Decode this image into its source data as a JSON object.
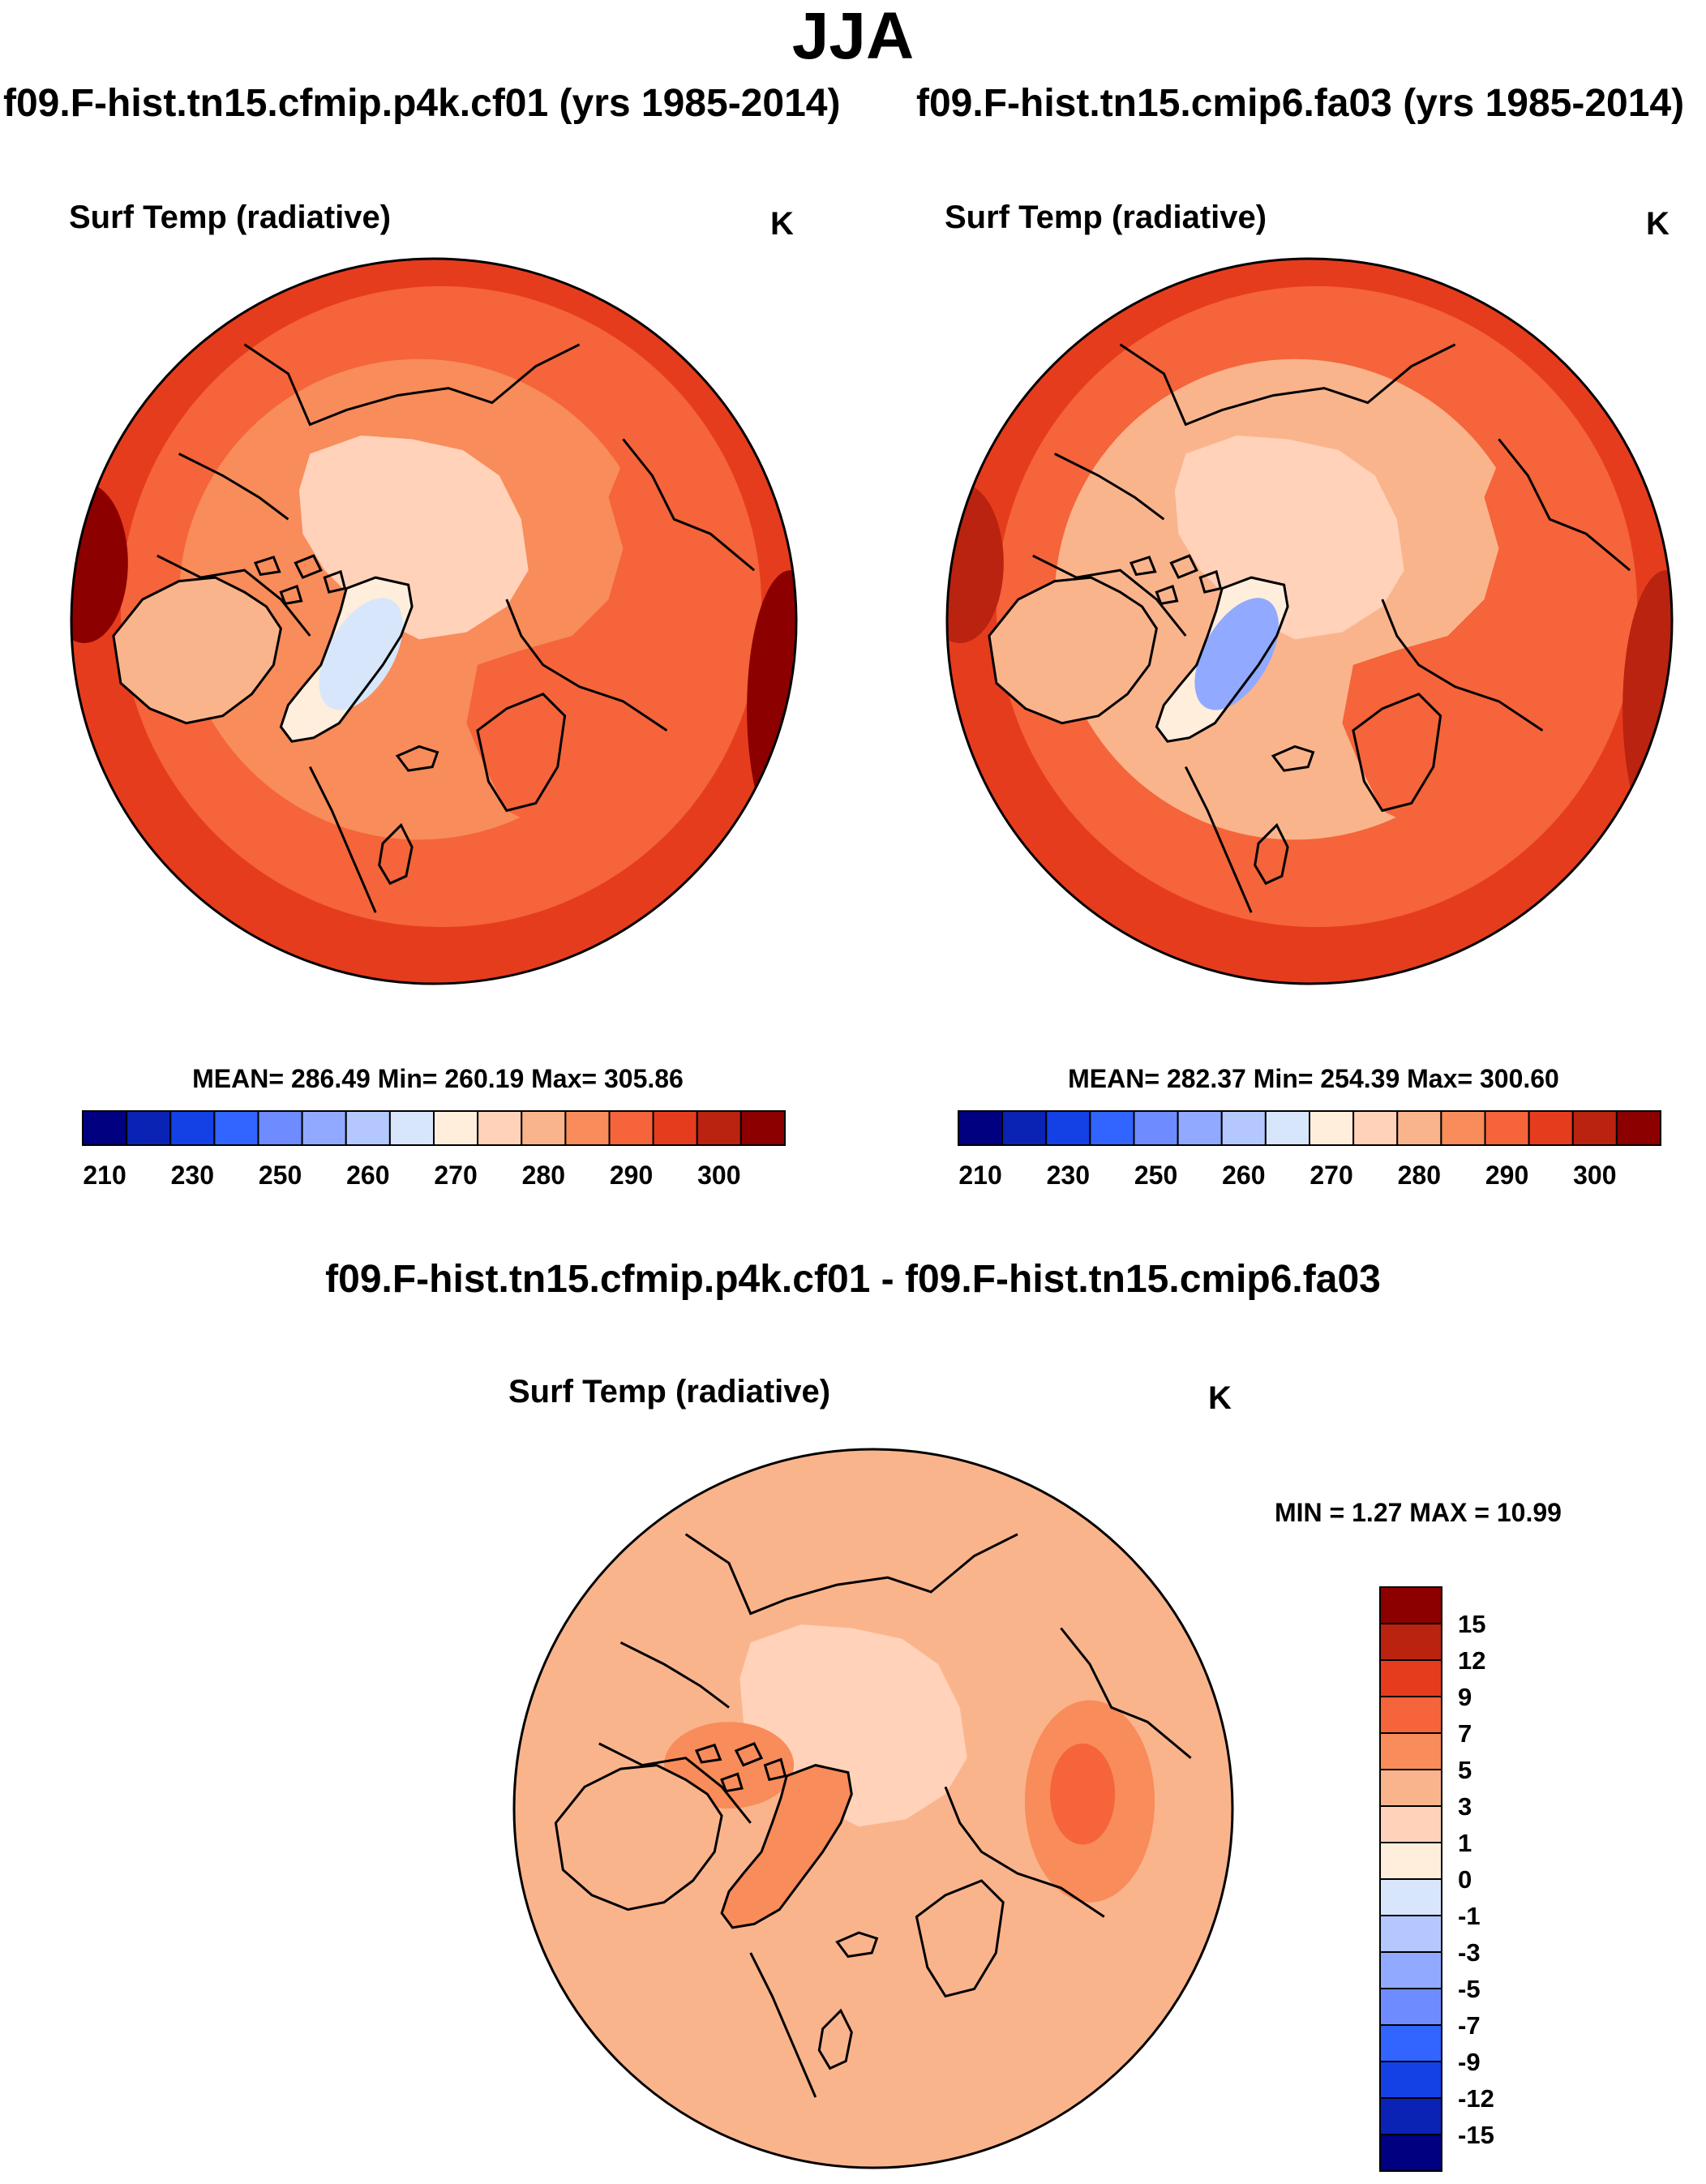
{
  "season": "JJA",
  "colors": {
    "abs_palette": [
      "#000080",
      "#0a23b4",
      "#1441e6",
      "#3264ff",
      "#6e8cff",
      "#91aaff",
      "#b4c8ff",
      "#d7e6fa",
      "#ffeedc",
      "#ffd2b9",
      "#fab48c",
      "#f88c5a",
      "#f5643a",
      "#e63c1e",
      "#b9230f",
      "#8c0000"
    ],
    "diff_palette": [
      "#000080",
      "#0a23b4",
      "#1441e6",
      "#3264ff",
      "#6e8cff",
      "#91aaff",
      "#b4c8ff",
      "#d7e6fa",
      "#ffeedc",
      "#ffd2b9",
      "#fab48c",
      "#f88c5a",
      "#f5643a",
      "#e63c1e",
      "#b9230f",
      "#8c0000"
    ],
    "coastline": "#000000"
  },
  "panels": {
    "top_left": {
      "run": "f09.F-hist.tn15.cfmip.p4k.cf01 (yrs 1985-2014)",
      "variable": "Surf Temp (radiative)",
      "units": "K",
      "stats": "MEAN= 286.49  Min= 260.19  Max= 305.86"
    },
    "top_right": {
      "run": "f09.F-hist.tn15.cmip6.fa03 (yrs 1985-2014)",
      "variable": "Surf Temp (radiative)",
      "units": "K",
      "stats": "MEAN= 282.37  Min= 254.39  Max= 300.60"
    },
    "bottom": {
      "run": "f09.F-hist.tn15.cfmip.p4k.cf01 - f09.F-hist.tn15.cmip6.fa03",
      "variable": "Surf Temp (radiative)",
      "units": "K",
      "stats": "MIN =   1.27 MAX =  10.99"
    }
  },
  "chart_data": [
    {
      "type": "heatmap",
      "projection": "north polar stereographic",
      "title": "f09.F-hist.tn15.cfmip.p4k.cf01 (yrs 1985-2014)",
      "variable": "Surf Temp (radiative)",
      "units": "K",
      "mean": 286.49,
      "min": 260.19,
      "max": 305.86,
      "colorbar_ticks": [
        "210",
        "230",
        "250",
        "260",
        "270",
        "280",
        "290",
        "300"
      ],
      "levels": [
        210,
        220,
        230,
        240,
        250,
        255,
        260,
        265,
        270,
        275,
        280,
        285,
        290,
        295,
        300
      ],
      "regions": [
        {
          "name": "low-latitude ring",
          "color_index": 13
        },
        {
          "name": "mid-latitude band",
          "color_index": 12
        },
        {
          "name": "subarctic land",
          "color_index": 11
        },
        {
          "name": "arctic ocean",
          "color_index": 9
        },
        {
          "name": "greenland interior",
          "color_index": 7
        },
        {
          "name": "hot continental edge",
          "color_index": 15
        }
      ]
    },
    {
      "type": "heatmap",
      "projection": "north polar stereographic",
      "title": "f09.F-hist.tn15.cmip6.fa03 (yrs 1985-2014)",
      "variable": "Surf Temp (radiative)",
      "units": "K",
      "mean": 282.37,
      "min": 254.39,
      "max": 300.6,
      "colorbar_ticks": [
        "210",
        "230",
        "250",
        "260",
        "270",
        "280",
        "290",
        "300"
      ],
      "levels": [
        210,
        220,
        230,
        240,
        250,
        255,
        260,
        265,
        270,
        275,
        280,
        285,
        290,
        295,
        300
      ],
      "regions": [
        {
          "name": "low-latitude ring",
          "color_index": 13
        },
        {
          "name": "mid-latitude band",
          "color_index": 12
        },
        {
          "name": "subarctic land",
          "color_index": 10
        },
        {
          "name": "arctic ocean",
          "color_index": 9
        },
        {
          "name": "greenland interior",
          "color_index": 5
        },
        {
          "name": "hot continental edge",
          "color_index": 14
        }
      ]
    },
    {
      "type": "heatmap",
      "projection": "north polar stereographic",
      "title": "f09.F-hist.tn15.cfmip.p4k.cf01 - f09.F-hist.tn15.cmip6.fa03",
      "variable": "Surf Temp (radiative)",
      "units": "K",
      "min": 1.27,
      "max": 10.99,
      "colorbar_ticks": [
        "15",
        "12",
        "9",
        "7",
        "5",
        "3",
        "1",
        "0",
        "-1",
        "-3",
        "-5",
        "-7",
        "-9",
        "-12",
        "-15"
      ],
      "levels": [
        -15,
        -12,
        -9,
        -7,
        -5,
        -3,
        -1,
        0,
        1,
        3,
        5,
        7,
        9,
        12,
        15
      ],
      "regions": [
        {
          "name": "ocean background",
          "color_index": 10
        },
        {
          "name": "arctic ocean",
          "color_index": 9
        },
        {
          "name": "greenland",
          "color_index": 11
        },
        {
          "name": "siberia hotspot",
          "color_index": 12
        },
        {
          "name": "canadian archipelago",
          "color_index": 11
        }
      ]
    }
  ]
}
